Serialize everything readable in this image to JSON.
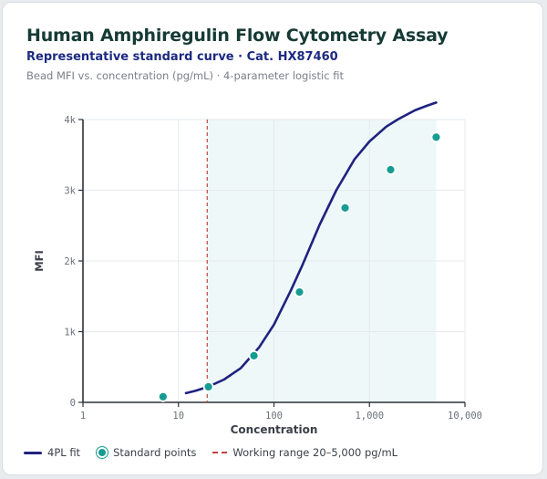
{
  "header": {
    "title": "Human Amphiregulin Flow Cytometry Assay",
    "subtitle": "Representative standard curve · Cat. HX87460",
    "caption": "Bead MFI vs. concentration (pg/mL) · 4-parameter logistic fit"
  },
  "legend": {
    "fit": "4PL fit",
    "points": "Standard points",
    "range": "Working range 20–5,000 pg/mL"
  },
  "colors": {
    "fit": "#1f2280",
    "points": "#169c93",
    "range_line": "#c2453d",
    "range_fill": "#eef8f8"
  },
  "chart_data": {
    "type": "scatter",
    "xlabel": "Concentration",
    "ylabel": "MFI",
    "x_scale": "log",
    "xlim": [
      1,
      10000
    ],
    "ylim": [
      0,
      4000
    ],
    "x_ticks": [
      1,
      10,
      100,
      1000,
      10000
    ],
    "x_tick_labels": [
      "1",
      "10",
      "100",
      "1,000",
      "10,000"
    ],
    "y_ticks": [
      0,
      1000,
      2000,
      3000,
      4000
    ],
    "y_tick_labels": [
      "0",
      "1k",
      "2k",
      "3k",
      "4k"
    ],
    "grid": true,
    "legend_position": "bottom",
    "working_range": [
      20,
      5000
    ],
    "series": [
      {
        "name": "Standard points",
        "kind": "points",
        "x": [
          6.9,
          20.6,
          61.7,
          185,
          556,
          1667,
          5000
        ],
        "y": [
          80,
          220,
          660,
          1560,
          2750,
          3290,
          3750
        ]
      },
      {
        "name": "4PL fit",
        "kind": "line",
        "x": [
          12,
          15,
          20,
          30,
          45,
          70,
          100,
          150,
          200,
          300,
          450,
          700,
          1000,
          1500,
          2000,
          3000,
          4000,
          5000
        ],
        "y": [
          130,
          162,
          215,
          323,
          485,
          780,
          1100,
          1580,
          1950,
          2510,
          3000,
          3440,
          3690,
          3900,
          4005,
          4130,
          4195,
          4240
        ]
      }
    ]
  }
}
